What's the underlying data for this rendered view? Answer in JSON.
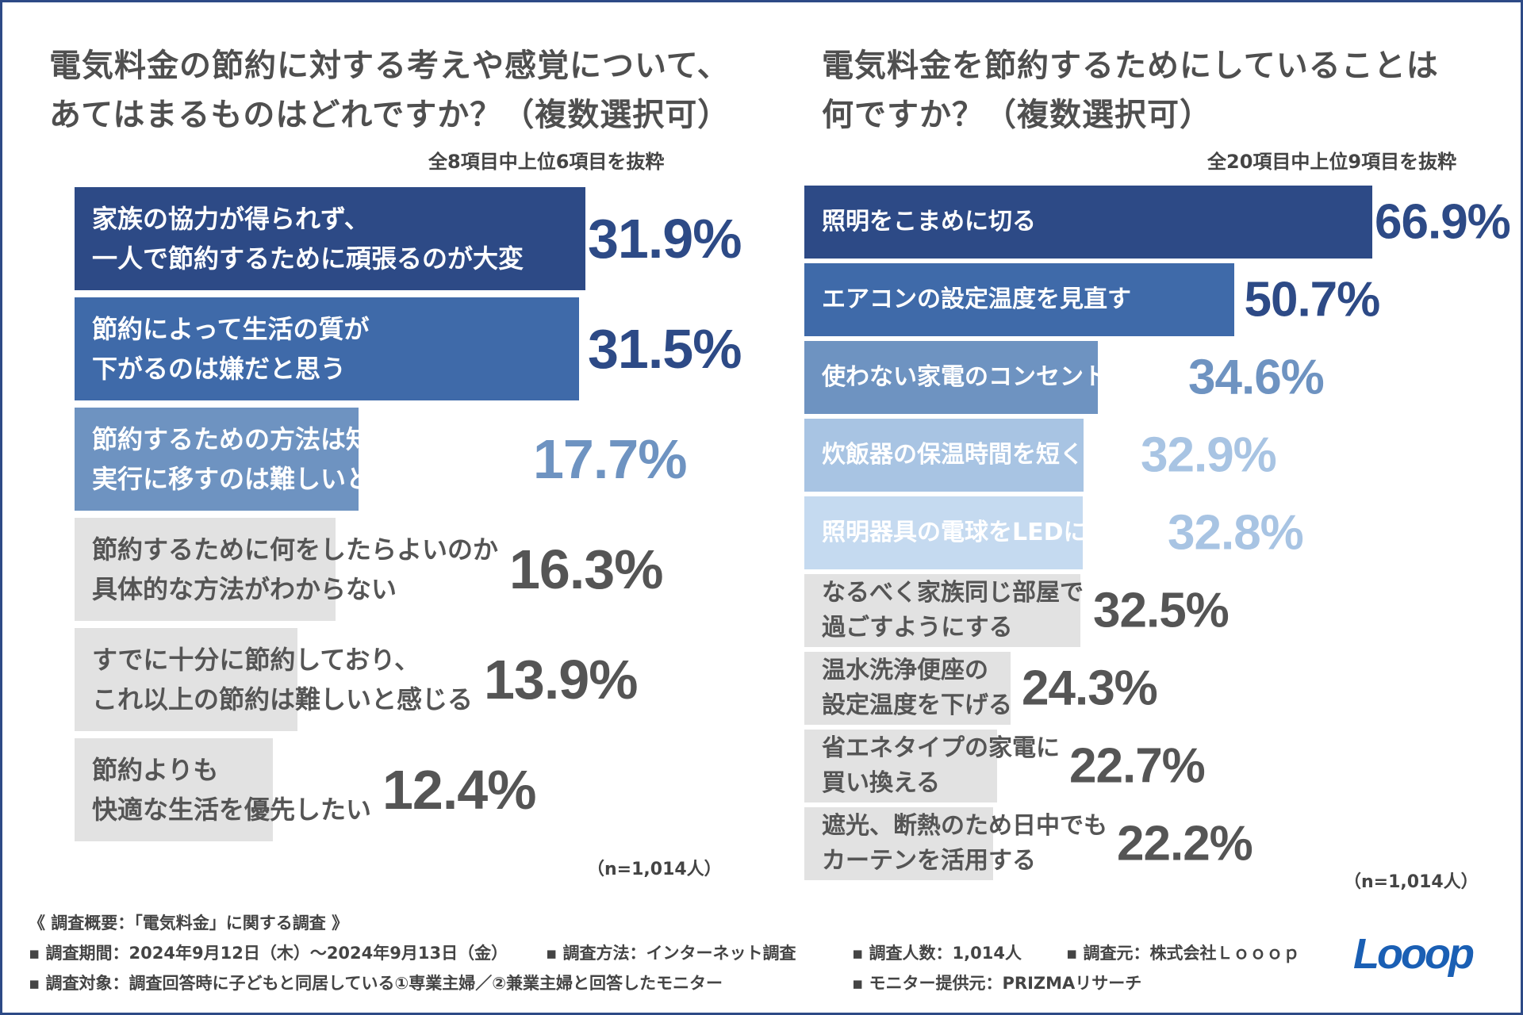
{
  "left_panel": {
    "title_line1": "電気料金の節約に対する考えや感覚について、",
    "title_line2": "あてはまるものはどれですか？（複数選択可）",
    "subnote": "全8項目中上位6項目を抜粋",
    "sample": "（n=1,014人）"
  },
  "right_panel": {
    "title_line1": "電気料金を節約するためにしていることは",
    "title_line2": "何ですか？（複数選択可）",
    "subnote": "全20項目中上位9項目を抜粋",
    "sample": "（n=1,014人）"
  },
  "footer": {
    "heading": "《 調査概要：「電気料金」に関する調査 》",
    "period": "▪ 調査期間：2024年9月12日（木）～2024年9月13日（金）",
    "method": "▪ 調査方法：インターネット調査",
    "count": "▪ 調査人数：1,014人",
    "source": "▪ 調査元：株式会社Ｌｏｏｏｐ",
    "target": "▪ 調査対象：調査回答時に子どもと同居している①専業主婦／②兼業主婦と回答したモニター",
    "provider": "▪ モニター提供元：PRIZMAリサーチ"
  },
  "logo_text": "Looop",
  "colors": {
    "navy": "#2d4a86",
    "blue": "#3f6aa9",
    "mid_blue": "#6e93c1",
    "light_blue": "#a8c4e3",
    "pale_blue": "#c5daf0",
    "grey": "#e2e2e2",
    "grey_text": "#555555"
  },
  "chart_data": [
    {
      "type": "bar",
      "orientation": "horizontal",
      "title": "電気料金の節約に対する考えや感覚について、あてはまるものはどれですか？（複数選択可）",
      "unit": "%",
      "categories": [
        [
          "家族の協力が得られず、",
          "一人で節約するために頑張るのが大変"
        ],
        [
          "節約によって生活の質が",
          "下がるのは嫌だと思う"
        ],
        [
          "節約するための方法は知っているが、",
          "実行に移すのは難しいと思う"
        ],
        [
          "節約するために何をしたらよいのか",
          "具体的な方法がわからない"
        ],
        [
          "すでに十分に節約しており、",
          "これ以上の節約は難しいと感じる"
        ],
        [
          "節約よりも",
          "快適な生活を優先したい"
        ]
      ],
      "values": [
        31.9,
        31.5,
        17.7,
        16.3,
        13.9,
        12.4
      ],
      "value_labels": [
        "31.9%",
        "31.5%",
        "17.7%",
        "16.3%",
        "13.9%",
        "12.4%"
      ],
      "bar_colors": [
        "#2d4a86",
        "#3f6aa9",
        "#6e93c1",
        "#e2e2e2",
        "#e2e2e2",
        "#e2e2e2"
      ],
      "label_colors": [
        "#ffffff",
        "#ffffff",
        "#ffffff",
        "#555555",
        "#555555",
        "#555555"
      ],
      "value_colors": [
        "#2d4a86",
        "#2d4a86",
        "#6e93c1",
        "#555555",
        "#555555",
        "#555555"
      ]
    },
    {
      "type": "bar",
      "orientation": "horizontal",
      "title": "電気料金を節約するためにしていることは何ですか？（複数選択可）",
      "unit": "%",
      "categories": [
        [
          "照明をこまめに切る"
        ],
        [
          "エアコンの設定温度を見直す"
        ],
        [
          "使わない家電のコンセントを抜く"
        ],
        [
          "炊飯器の保温時間を短くする"
        ],
        [
          "照明器具の電球をLEDに変える"
        ],
        [
          "なるべく家族同じ部屋で",
          "過ごすようにする"
        ],
        [
          "温水洗浄便座の",
          "設定温度を下げる"
        ],
        [
          "省エネタイプの家電に",
          "買い換える"
        ],
        [
          "遮光、断熱のため日中でも",
          "カーテンを活用する"
        ]
      ],
      "values": [
        66.9,
        50.7,
        34.6,
        32.9,
        32.8,
        32.5,
        24.3,
        22.7,
        22.2
      ],
      "value_labels": [
        "66.9%",
        "50.7%",
        "34.6%",
        "32.9%",
        "32.8%",
        "32.5%",
        "24.3%",
        "22.7%",
        "22.2%"
      ],
      "bar_colors": [
        "#2d4a86",
        "#3f6aa9",
        "#6e93c1",
        "#a8c4e3",
        "#c5daf0",
        "#e2e2e2",
        "#e2e2e2",
        "#e2e2e2",
        "#e2e2e2"
      ],
      "label_colors": [
        "#ffffff",
        "#ffffff",
        "#ffffff",
        "#ffffff",
        "#ffffff",
        "#555555",
        "#555555",
        "#555555",
        "#555555"
      ],
      "value_colors": [
        "#2d4a86",
        "#2d4a86",
        "#6e93c1",
        "#a8c4e3",
        "#a8c4e3",
        "#555555",
        "#555555",
        "#555555",
        "#555555"
      ]
    }
  ]
}
